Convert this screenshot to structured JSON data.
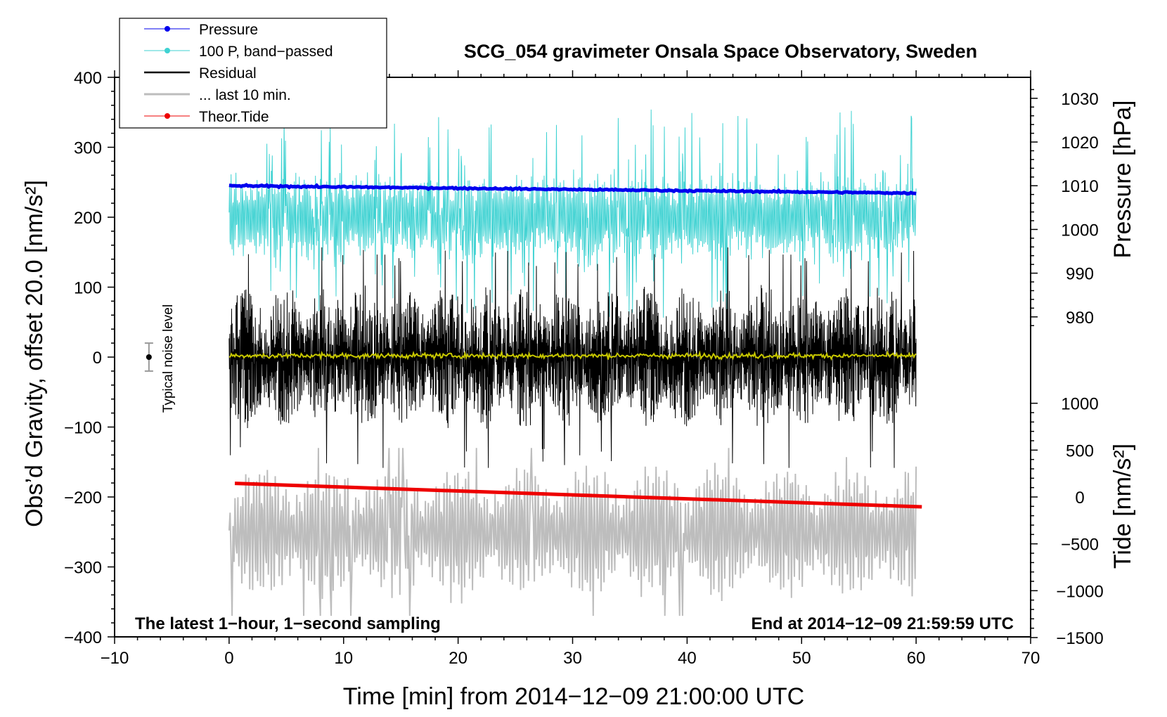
{
  "colors": {
    "pressure": "#0000ee",
    "bandpass": "#3fd2d2",
    "residual": "#000000",
    "last10": "#bdbdbd",
    "tide": "#ee0000",
    "smoothed": "#c8c800"
  },
  "chart_data": {
    "type": "line",
    "title": "SCG_054 gravimeter Onsala Space Observatory, Sweden",
    "xlabel": "Time [min] from 2014−12−09 21:00:00 UTC",
    "ylabel_left": "Obs’d Gravity, offset 20.0 [nm/s²]",
    "ylabel_right_top": "Pressure [hPa]",
    "ylabel_right_bottom": "Tide [nm/s²]",
    "footer_left": "The latest 1−hour, 1−second sampling",
    "footer_right": "End at 2014−12−09 21:59:59 UTC",
    "noise_label": "Typical noise level",
    "xlim": [
      -10,
      70
    ],
    "ylim_left": [
      -400,
      400
    ],
    "x_ticks": [
      -10,
      0,
      10,
      20,
      30,
      40,
      50,
      60,
      70
    ],
    "x_tick_labels": [
      "−10",
      "0",
      "10",
      "20",
      "30",
      "40",
      "50",
      "60",
      "70"
    ],
    "y_ticks_left": [
      400,
      300,
      200,
      100,
      0,
      -100,
      -200,
      -300,
      -400
    ],
    "y_tick_labels_left": [
      "400",
      "300",
      "200",
      "100",
      "0",
      "−100",
      "−200",
      "−300",
      "−400"
    ],
    "pressure_axis": {
      "ticks": [
        1030,
        1020,
        1010,
        1000,
        990,
        980
      ],
      "labels": [
        "1030",
        "1020",
        "1010",
        "1000",
        "990",
        "980"
      ],
      "gravity_equiv_at_1030": 370,
      "gravity_per_hPa": 6.25
    },
    "tide_axis": {
      "ticks": [
        1000,
        500,
        0,
        -500,
        -1000,
        -1500
      ],
      "labels": [
        "1000",
        "500",
        "0",
        "−500",
        "−1000",
        "−1500"
      ],
      "gravity_equiv_at_0": -200,
      "gravity_per_unit": 0.134
    },
    "legend": [
      {
        "label": "Pressure",
        "color_key": "pressure",
        "marker": true
      },
      {
        "label": "100 P, band−passed",
        "color_key": "bandpass",
        "marker": true
      },
      {
        "label": "Residual",
        "color_key": "residual",
        "marker": false
      },
      {
        "label": "... last 10 min.",
        "color_key": "last10",
        "marker": false
      },
      {
        "label": "Theor.Tide",
        "color_key": "tide",
        "marker": true
      }
    ],
    "noise_bar": {
      "x": -7,
      "y": 0,
      "err": 20
    },
    "series": [
      {
        "name": "Pressure",
        "unit": "hPa",
        "x_range": [
          0,
          60
        ],
        "start": 1010.0,
        "end": 1008.3
      },
      {
        "name": "100 P, band-passed",
        "unit": "nm/s²",
        "x_range": [
          0,
          60
        ],
        "center": 200,
        "amplitude": 55,
        "spike_max": 355
      },
      {
        "name": "Residual",
        "unit": "nm/s²",
        "x_range": [
          0,
          60
        ],
        "center": 0,
        "amplitude": 100,
        "extreme": 160
      },
      {
        "name": "Smoothed residual",
        "unit": "nm/s²",
        "x_range": [
          0,
          60
        ],
        "center": 2,
        "amplitude": 3
      },
      {
        "name": "... last 10 min.",
        "unit": "nm/s²",
        "x_range": [
          0,
          60
        ],
        "center": -250,
        "amplitude": 90
      },
      {
        "name": "Theor.Tide",
        "unit": "nm/s²",
        "x_range": [
          0.5,
          60.5
        ],
        "start": 145,
        "end": -105
      }
    ]
  }
}
